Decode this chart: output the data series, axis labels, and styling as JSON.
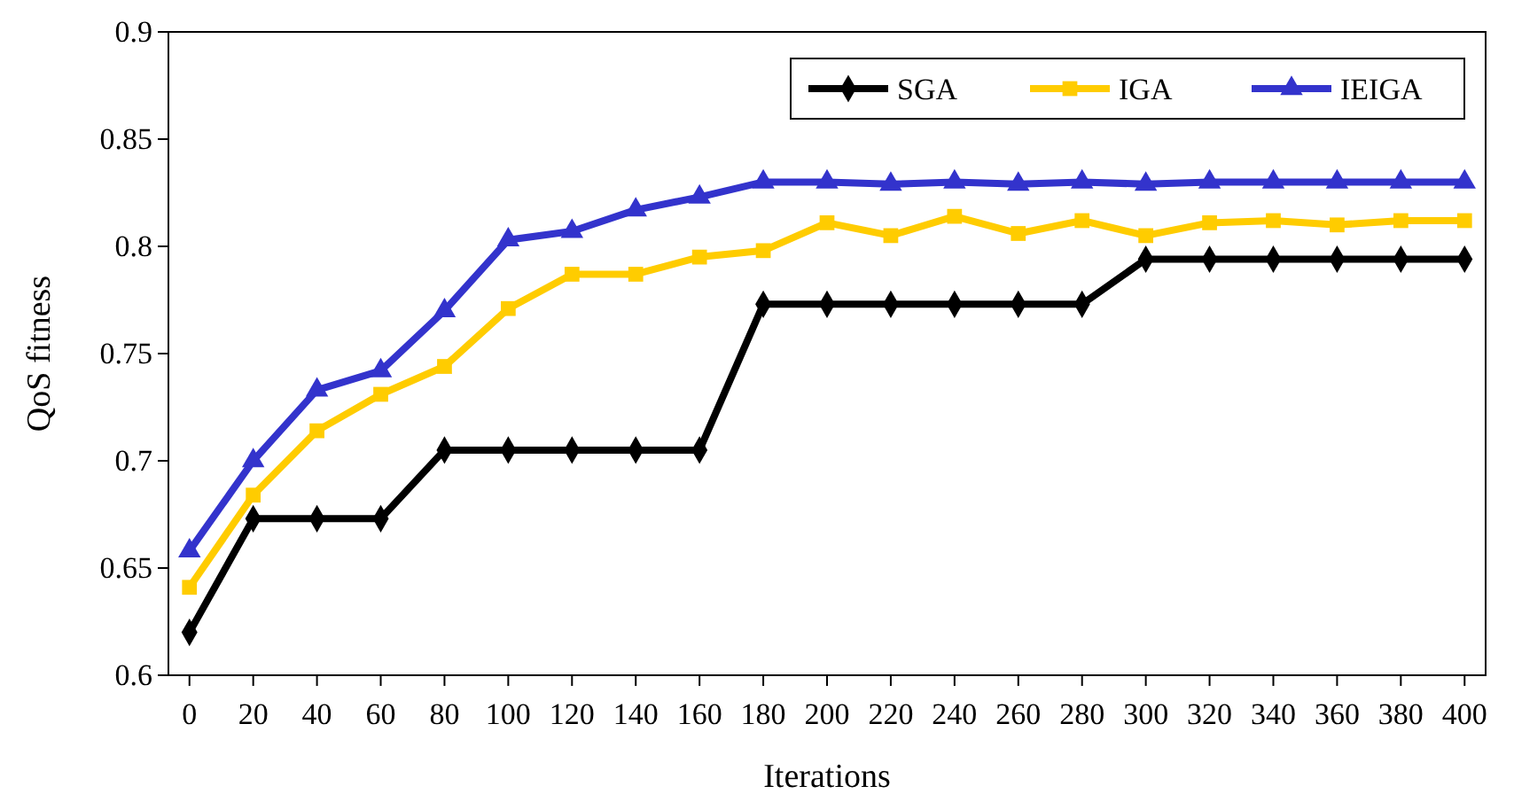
{
  "chart_data": {
    "type": "line",
    "xlabel": "Iterations",
    "ylabel": "QoS fitness",
    "categories": [
      "0",
      "20",
      "40",
      "60",
      "80",
      "100",
      "120",
      "140",
      "160",
      "180",
      "200",
      "220",
      "240",
      "260",
      "280",
      "300",
      "320",
      "340",
      "360",
      "380",
      "400"
    ],
    "ylim": [
      0.6,
      0.9
    ],
    "yticks": [
      0.6,
      0.65,
      0.7,
      0.75,
      0.8,
      0.85,
      0.9
    ],
    "grid": false,
    "legend": "top right",
    "series": [
      {
        "name": "SGA",
        "color": "#000000",
        "marker": "diamond",
        "values": [
          0.62,
          0.673,
          0.673,
          0.673,
          0.705,
          0.705,
          0.705,
          0.705,
          0.705,
          0.773,
          0.773,
          0.773,
          0.773,
          0.773,
          0.773,
          0.794,
          0.794,
          0.794,
          0.794,
          0.794,
          0.794
        ]
      },
      {
        "name": "IGA",
        "color": "#ffcc00",
        "marker": "square",
        "values": [
          0.641,
          0.684,
          0.714,
          0.731,
          0.744,
          0.771,
          0.787,
          0.787,
          0.795,
          0.798,
          0.811,
          0.805,
          0.814,
          0.806,
          0.812,
          0.805,
          0.811,
          0.812,
          0.81,
          0.812,
          0.812
        ]
      },
      {
        "name": "IEIGA",
        "color": "#3333cc",
        "marker": "triangle",
        "values": [
          0.658,
          0.7,
          0.733,
          0.742,
          0.77,
          0.803,
          0.807,
          0.817,
          0.823,
          0.83,
          0.83,
          0.829,
          0.83,
          0.829,
          0.83,
          0.829,
          0.83,
          0.83,
          0.83,
          0.83,
          0.83
        ]
      }
    ]
  }
}
